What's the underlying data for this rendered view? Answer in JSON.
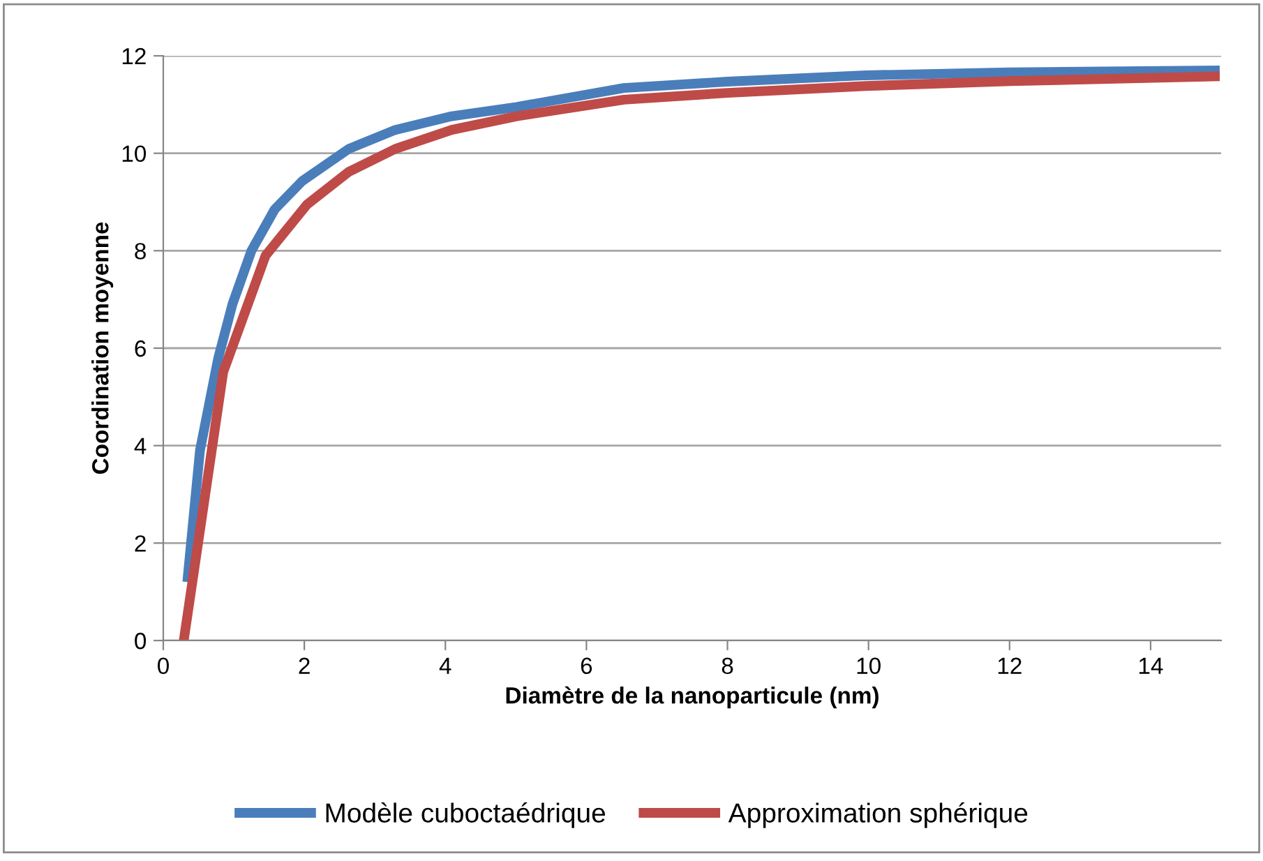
{
  "chart_data": {
    "type": "line",
    "xlabel": "Diamètre de la nanoparticule (nm)",
    "ylabel": "Coordination moyenne",
    "xlim": [
      0,
      15
    ],
    "xticks": [
      0,
      2,
      4,
      6,
      8,
      10,
      12,
      14
    ],
    "ylim": [
      0,
      12
    ],
    "yticks": [
      0,
      2,
      4,
      6,
      8,
      10,
      12
    ],
    "grid": "y",
    "legend": "bottom",
    "marker": "none",
    "line_style": "solid",
    "series": [
      {
        "name": "Modèle cuboctaédrique",
        "color": "#4a7ebb",
        "x": [
          0.34,
          0.52,
          0.78,
          0.98,
          1.25,
          1.58,
          1.97,
          2.63,
          3.29,
          4.09,
          5.01,
          6.53,
          8,
          9.96,
          12,
          14.98
        ],
        "values": [
          1.2,
          3.9,
          5.8,
          6.9,
          8.0,
          8.85,
          9.43,
          10.09,
          10.48,
          10.76,
          10.95,
          11.34,
          11.47,
          11.6,
          11.66,
          11.7
        ]
      },
      {
        "name": "Approximation sphérique",
        "color": "#be4b48",
        "x": [
          0.29,
          0.52,
          0.85,
          1.45,
          2.04,
          2.63,
          3.29,
          4.09,
          5.01,
          6.53,
          8,
          9.96,
          12,
          14.98
        ],
        "values": [
          0,
          2.26,
          5.51,
          7.9,
          8.95,
          9.62,
          10.09,
          10.48,
          10.76,
          11.1,
          11.24,
          11.38,
          11.48,
          11.58
        ]
      }
    ]
  }
}
